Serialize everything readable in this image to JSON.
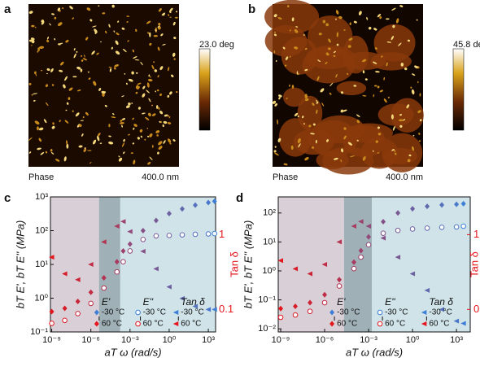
{
  "panels": [
    {
      "label": "a",
      "scale_label": "23.0 deg",
      "caption_left": "Phase",
      "caption_right": "400.0 nm"
    },
    {
      "label": "b",
      "scale_label": "45.8 deg",
      "caption_left": "Phase",
      "caption_right": "400.0 nm"
    }
  ],
  "chart_data": [
    {
      "type": "scatter",
      "label": "c",
      "log_scale": true,
      "ylabel": "bT E', bT E'' (MPa)",
      "xlabel": "aT ω (rad/s)",
      "y2label": "Tan δ",
      "x": [
        1e-09,
        1e-08,
        1e-07,
        1e-06,
        1e-05,
        0.0001,
        0.0003,
        0.001,
        0.01,
        0.1,
        1,
        10,
        100,
        1000,
        3000
      ],
      "series": [
        {
          "name": "E'",
          "values": [
            0.4,
            0.5,
            0.8,
            1.5,
            4,
            12,
            25,
            40,
            100,
            200,
            320,
            440,
            570,
            680,
            740
          ]
        },
        {
          "name": "E''",
          "values": [
            0.18,
            0.22,
            0.35,
            0.7,
            2,
            6,
            12,
            25,
            55,
            70,
            72,
            75,
            78,
            80,
            82
          ]
        },
        {
          "name": "Tan δ",
          "axis": "y2",
          "values": [
            0.5,
            0.3,
            0.25,
            0.4,
            0.8,
            1.3,
            1.5,
            1.1,
            0.6,
            0.35,
            0.2,
            0.14,
            0.11,
            0.1,
            0.1
          ]
        }
      ],
      "legend_rows": [
        {
          "name": "-30 °C",
          "color": "#3d7fd6"
        },
        {
          "name": "60 °C",
          "color": "#e4151d"
        }
      ],
      "regions": [
        {
          "from": 8e-10,
          "to": 4.2e-06,
          "color": "#d9cfd6"
        },
        {
          "from": 4.2e-06,
          "to": 0.00018,
          "color": "#9fb0b6"
        },
        {
          "from": 0.00018,
          "to": 3600,
          "color": "#cfe3e8"
        }
      ],
      "xlim": [
        8e-10,
        3600
      ],
      "ylim": [
        0.1,
        1000
      ],
      "y2lim": [
        0.05,
        3.2
      ],
      "xticks": [
        {
          "value": 1e-09,
          "label": "10⁻⁹"
        },
        {
          "value": 1e-06,
          "label": "10⁻⁶"
        },
        {
          "value": 0.001,
          "label": "10⁻³"
        },
        {
          "value": 1,
          "label": "10⁰"
        },
        {
          "value": 1000,
          "label": "10³"
        }
      ],
      "yticks": [
        {
          "value": 0.1,
          "label": "10⁻¹"
        },
        {
          "value": 1,
          "label": "10⁰"
        },
        {
          "value": 10,
          "label": "10¹"
        },
        {
          "value": 100,
          "label": "10²"
        },
        {
          "value": 1000,
          "label": "10³"
        }
      ],
      "y2ticks": [
        0.1,
        1
      ]
    },
    {
      "type": "scatter",
      "label": "d",
      "log_scale": true,
      "ylabel": "bT E', bT E'' (MPa)",
      "xlabel": "aT ω (rad/s)",
      "y2label": "Tan δ",
      "x": [
        1e-09,
        1e-08,
        1e-07,
        1e-06,
        1e-05,
        0.0001,
        0.0003,
        0.001,
        0.01,
        0.1,
        1,
        10,
        100,
        1000,
        3000
      ],
      "series": [
        {
          "name": "E'",
          "values": [
            0.05,
            0.06,
            0.08,
            0.15,
            0.5,
            2,
            5,
            15,
            50,
            100,
            140,
            170,
            190,
            200,
            210
          ]
        },
        {
          "name": "E''",
          "values": [
            0.025,
            0.03,
            0.04,
            0.08,
            0.3,
            1.2,
            3,
            8,
            20,
            25,
            28,
            30,
            32,
            33,
            35
          ]
        },
        {
          "name": "Tan δ",
          "axis": "y2",
          "values": [
            0.45,
            0.35,
            0.3,
            0.4,
            0.8,
            1.3,
            1.5,
            1.3,
            0.9,
            0.5,
            0.3,
            0.18,
            0.1,
            0.07,
            0.065
          ]
        }
      ],
      "legend_rows": [
        {
          "name": "-30 °C",
          "color": "#3d7fd6"
        },
        {
          "name": "60 °C",
          "color": "#e4151d"
        }
      ],
      "regions": [
        {
          "from": 6.8e-10,
          "to": 2.1e-05,
          "color": "#d9cfd6"
        },
        {
          "from": 2.1e-05,
          "to": 0.0017,
          "color": "#9fb0b6"
        },
        {
          "from": 0.0017,
          "to": 8700,
          "color": "#cfe3e8"
        }
      ],
      "xlim": [
        6.8e-10,
        8700
      ],
      "ylim": [
        0.0078,
        360
      ],
      "y2lim": [
        0.05,
        3.2
      ],
      "xticks": [
        {
          "value": 1e-09,
          "label": "10⁻⁹"
        },
        {
          "value": 1e-06,
          "label": "10⁻⁶"
        },
        {
          "value": 0.001,
          "label": "10⁻³"
        },
        {
          "value": 1,
          "label": "10⁰"
        },
        {
          "value": 1000,
          "label": "10³"
        }
      ],
      "yticks": [
        {
          "value": 0.01,
          "label": "10⁻²"
        },
        {
          "value": 0.1,
          "label": "10⁻¹"
        },
        {
          "value": 1,
          "label": "10⁰"
        },
        {
          "value": 10,
          "label": "10¹"
        },
        {
          "value": 100,
          "label": "10²"
        }
      ],
      "y2ticks": [
        0.1,
        1
      ]
    }
  ]
}
